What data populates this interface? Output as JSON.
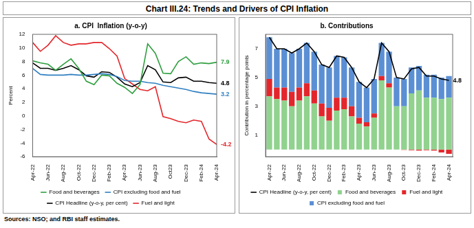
{
  "title": "Chart III.24: Trends and Drivers of CPI Inflation",
  "source": "Sources: NSO; and RBI staff estimates.",
  "chart_data": [
    {
      "type": "line",
      "title": "a. CPI  Inflation (y-o-y)",
      "y_label": "Percent",
      "categories": [
        "Apr-22",
        null,
        "Jun-22",
        null,
        "Aug-22",
        null,
        "Oct-22",
        null,
        "Dec-22",
        null,
        "Feb-23",
        null,
        "Apr-23",
        null,
        "Jun-23",
        null,
        "Aug-23",
        null,
        "Oct23",
        null,
        "Dec-23",
        null,
        "Feb-24",
        null,
        "Apr-24"
      ],
      "series": [
        {
          "name": "Food and beverages",
          "color": "#2e9e3e",
          "values": [
            8.1,
            7.8,
            7.6,
            6.7,
            7.6,
            8.4,
            7.0,
            5.1,
            4.6,
            6.0,
            5.9,
            4.8,
            4.2,
            3.3,
            4.6,
            10.6,
            9.2,
            6.3,
            6.2,
            8.0,
            8.7,
            7.6,
            7.8,
            7.7,
            7.9
          ]
        },
        {
          "name": "CPI excluding food and fuel",
          "color": "#2f7fc1",
          "values": [
            7.0,
            6.1,
            6.0,
            6.0,
            6.0,
            6.1,
            6.0,
            6.0,
            6.1,
            6.2,
            6.1,
            5.8,
            5.2,
            5.1,
            5.1,
            4.9,
            4.8,
            4.5,
            4.3,
            4.1,
            3.9,
            3.6,
            3.4,
            3.3,
            3.2
          ]
        },
        {
          "name": "CPI Headline (y-o-y, per cent)",
          "color": "#000000",
          "values": [
            7.8,
            7.0,
            7.0,
            6.7,
            7.0,
            7.4,
            6.8,
            5.9,
            5.7,
            6.5,
            6.4,
            5.7,
            4.7,
            4.3,
            4.9,
            7.4,
            6.8,
            5.0,
            4.9,
            5.6,
            5.7,
            5.1,
            5.1,
            4.9,
            4.8
          ]
        },
        {
          "name": "Fuel and light",
          "color": "#e3262b",
          "values": [
            10.8,
            9.5,
            10.4,
            11.8,
            10.8,
            10.4,
            10.6,
            10.6,
            10.8,
            10.8,
            9.9,
            8.8,
            5.5,
            4.7,
            3.9,
            3.7,
            4.3,
            -0.1,
            -0.4,
            -0.8,
            -1.0,
            -0.6,
            -0.8,
            -3.4,
            -4.2
          ]
        }
      ],
      "annotations": [
        {
          "text": "7.9",
          "series": "Food and beverages"
        },
        {
          "text": "4.8",
          "series": "CPI Headline (y-o-y, per cent)"
        },
        {
          "text": "3.2",
          "series": "CPI excluding food and fuel"
        },
        {
          "text": "-4.2",
          "series": "Fuel and light"
        }
      ],
      "ylim": [
        -6,
        12
      ],
      "yticks": [
        -6,
        -4,
        -2,
        0,
        2,
        4,
        6,
        8,
        10,
        12
      ],
      "grid": false,
      "legend": "bottom"
    },
    {
      "type": "bar",
      "title": "b. Contributions",
      "y_label": "Contribution in percentage points",
      "stacked": true,
      "categories": [
        "Apr-22",
        null,
        "Jun-22",
        null,
        "Aug-22",
        null,
        "Oct-22",
        null,
        "Dec-22",
        null,
        "Feb-23",
        null,
        "Apr-23",
        null,
        "Jun-23",
        null,
        "Aug-23",
        null,
        "Oct-23",
        null,
        "Dec-23",
        null,
        "Feb-24",
        null,
        "Apr-24"
      ],
      "series": [
        {
          "name": "Food and beverages",
          "color": "#90d28e",
          "values": [
            3.7,
            3.5,
            3.4,
            3.0,
            3.4,
            3.7,
            3.2,
            2.3,
            2.0,
            2.7,
            2.8,
            2.3,
            1.8,
            1.6,
            2.2,
            4.8,
            4.3,
            3.0,
            3.0,
            3.9,
            4.1,
            3.6,
            3.6,
            3.5,
            3.6
          ]
        },
        {
          "name": "Fuel and light",
          "color": "#e3262b",
          "values": [
            1.2,
            0.8,
            0.9,
            1.0,
            0.9,
            0.9,
            0.9,
            0.9,
            0.9,
            0.9,
            0.8,
            0.7,
            0.4,
            0.3,
            0.3,
            0.3,
            0.3,
            0.0,
            -0.03,
            -0.05,
            -0.07,
            -0.05,
            -0.07,
            -0.2,
            -0.3
          ]
        },
        {
          "name": "CPI excluding food and fuel",
          "color": "#5b8fd4",
          "values": [
            2.9,
            2.7,
            2.7,
            2.7,
            2.7,
            2.8,
            2.7,
            2.7,
            2.8,
            2.9,
            2.8,
            2.7,
            2.5,
            2.4,
            2.4,
            2.3,
            2.2,
            2.0,
            1.9,
            1.8,
            1.7,
            1.6,
            1.6,
            1.5,
            1.5
          ]
        },
        {
          "name": "CPI Headline (y-o-y, per cent)",
          "color": "#000000",
          "type": "line",
          "values": [
            7.8,
            7.0,
            7.0,
            6.7,
            7.0,
            7.4,
            6.8,
            5.9,
            5.7,
            6.5,
            6.4,
            5.7,
            4.7,
            4.3,
            4.9,
            7.4,
            6.8,
            5.0,
            4.9,
            5.6,
            5.7,
            5.1,
            5.1,
            4.9,
            4.8
          ]
        }
      ],
      "annotations": [
        {
          "text": "4.8",
          "series": "CPI Headline (y-o-y, per cent)"
        }
      ],
      "ylim": [
        -0.5,
        8
      ],
      "yticks": [
        1,
        3,
        5,
        7
      ],
      "grid": false,
      "legend": "bottom"
    }
  ]
}
